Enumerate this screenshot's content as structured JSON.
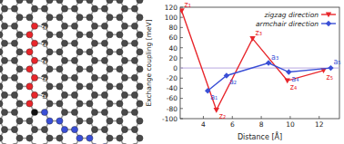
{
  "chart_data": {
    "type": "line",
    "xlabel": "Distance [Å]",
    "ylabel": "Exchange coupling [meV]",
    "xlim": [
      2.4,
      13.4
    ],
    "xticks": [
      4,
      6,
      8,
      10,
      12
    ],
    "ylim": [
      -100,
      120
    ],
    "yticks": [
      -100,
      -80,
      -60,
      -40,
      -20,
      0,
      20,
      40,
      60,
      80,
      100,
      120
    ],
    "grid": false,
    "legend": "upper-right",
    "series": [
      {
        "name": "zigzag direction",
        "color": "#e8262b",
        "marker": "triangle-down",
        "line_style": "solid",
        "x": [
          2.5,
          4.9,
          7.4,
          9.8,
          12.3
        ],
        "values": [
          113,
          -83,
          58,
          -25,
          -5
        ],
        "point_labels": [
          "z₁",
          "z₂",
          "z₃",
          "z₄",
          "z₅"
        ]
      },
      {
        "name": "armchair direction",
        "color": "#3a4fd6",
        "marker": "diamond",
        "line_style": "solid",
        "x": [
          4.3,
          5.6,
          8.5,
          9.9,
          12.8
        ],
        "values": [
          -45,
          -15,
          10,
          -8,
          0
        ],
        "point_labels": [
          "a₁",
          "a₂",
          "a₃",
          "a₄",
          "a₅"
        ]
      }
    ]
  }
}
